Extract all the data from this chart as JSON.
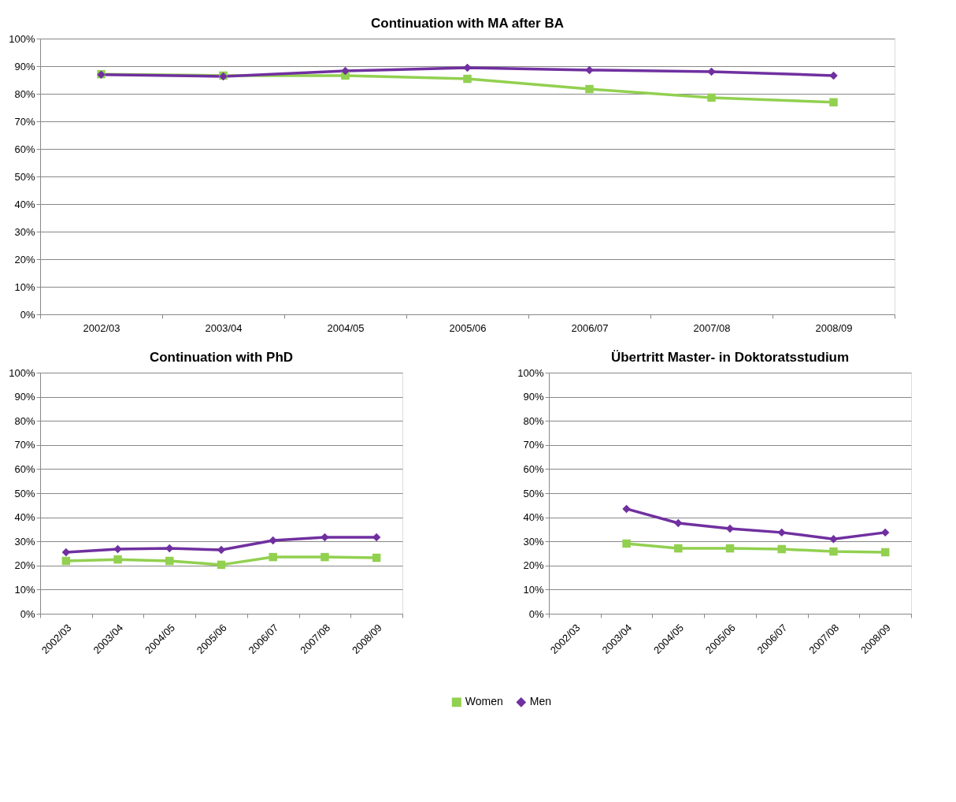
{
  "chart_data": [
    {
      "type": "line",
      "title": "Continuation with MA after BA",
      "categories": [
        "2002/03",
        "2003/04",
        "2004/05",
        "2005/06",
        "2006/07",
        "2007/08",
        "2008/09"
      ],
      "series": [
        {
          "color": "#92d050",
          "marker": "square",
          "values": [
            87.1,
            86.6,
            86.6,
            85.4,
            81.7,
            78.6,
            76.9
          ]
        },
        {
          "color": "#7030a0",
          "marker": "diamond",
          "values": [
            86.9,
            86.3,
            88.3,
            89.4,
            88.6,
            88.0,
            86.6
          ]
        }
      ],
      "ylim": [
        0,
        100
      ],
      "yticks": [
        {
          "value": 0,
          "label": "0%"
        },
        {
          "value": 10,
          "label": "10%"
        },
        {
          "value": 20,
          "label": "20%"
        },
        {
          "value": 30,
          "label": "30%"
        },
        {
          "value": 40,
          "label": "40%"
        },
        {
          "value": 50,
          "label": "50%"
        },
        {
          "value": 60,
          "label": "60%"
        },
        {
          "value": 70,
          "label": "70%"
        },
        {
          "value": 80,
          "label": "80%"
        },
        {
          "value": 90,
          "label": "90%"
        },
        {
          "value": 100,
          "label": "100%"
        }
      ],
      "grid": "y",
      "legend": false,
      "line_style": "solid"
    },
    {
      "type": "line",
      "title": "Continuation with PhD",
      "categories": [
        "2002/03",
        "2003/04",
        "2004/05",
        "2005/06",
        "2006/07",
        "2007/08",
        "2008/09"
      ],
      "series": [
        {
          "color": "#92d050",
          "marker": "square",
          "values": [
            21.9,
            22.5,
            21.9,
            20.3,
            23.5,
            23.5,
            23.2
          ]
        },
        {
          "color": "#7030a0",
          "marker": "diamond",
          "values": [
            25.5,
            26.8,
            27.1,
            26.5,
            30.4,
            31.7,
            31.7
          ]
        }
      ],
      "ylim": [
        0,
        100
      ],
      "yticks": [
        {
          "value": 0,
          "label": "0%"
        },
        {
          "value": 10,
          "label": "10%"
        },
        {
          "value": 20,
          "label": "20%"
        },
        {
          "value": 30,
          "label": "30%"
        },
        {
          "value": 40,
          "label": "40%"
        },
        {
          "value": 50,
          "label": "50%"
        },
        {
          "value": 60,
          "label": "60%"
        },
        {
          "value": 70,
          "label": "70%"
        },
        {
          "value": 80,
          "label": "80%"
        },
        {
          "value": 90,
          "label": "90%"
        },
        {
          "value": 100,
          "label": "100%"
        }
      ],
      "grid": "y",
      "legend": false,
      "line_style": "solid"
    },
    {
      "type": "line",
      "title": "Übertritt Master- in Doktoratsstudium",
      "categories": [
        "2002/03",
        "2003/04",
        "2004/05",
        "2005/06",
        "2006/07",
        "2007/08",
        "2008/09"
      ],
      "series": [
        {
          "name": "Women",
          "color": "#92d050",
          "marker": "square",
          "values": [
            null,
            29.1,
            27.1,
            27.1,
            26.8,
            25.8,
            25.5
          ]
        },
        {
          "name": "Men",
          "color": "#7030a0",
          "marker": "diamond",
          "values": [
            null,
            43.5,
            37.6,
            35.3,
            33.7,
            31.0,
            33.7
          ]
        }
      ],
      "ylim": [
        0,
        100
      ],
      "yticks": [
        {
          "value": 0,
          "label": "0%"
        },
        {
          "value": 10,
          "label": "10%"
        },
        {
          "value": 20,
          "label": "20%"
        },
        {
          "value": 30,
          "label": "30%"
        },
        {
          "value": 40,
          "label": "40%"
        },
        {
          "value": 50,
          "label": "50%"
        },
        {
          "value": 60,
          "label": "60%"
        },
        {
          "value": 70,
          "label": "70%"
        },
        {
          "value": 80,
          "label": "80%"
        },
        {
          "value": 90,
          "label": "90%"
        },
        {
          "value": 100,
          "label": "100%"
        }
      ],
      "grid": "y",
      "legend": "bottom",
      "line_style": "solid"
    }
  ]
}
